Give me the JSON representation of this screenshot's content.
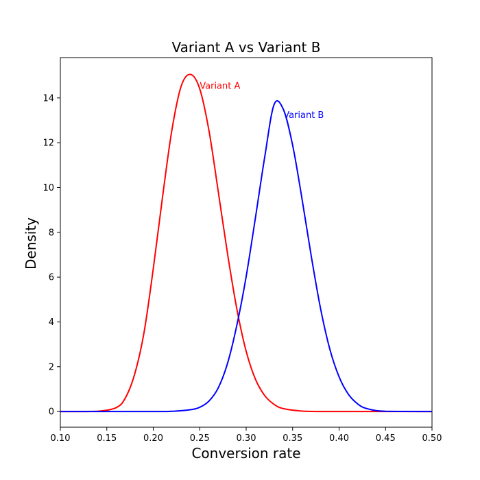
{
  "chart_data": {
    "type": "line",
    "title": "Variant A vs Variant B",
    "xlabel": "Conversion rate",
    "ylabel": "Density",
    "xlim": [
      0.1,
      0.5
    ],
    "ylim": [
      -0.7,
      15.8
    ],
    "xticks": [
      0.1,
      0.15,
      0.2,
      0.25,
      0.3,
      0.35,
      0.4,
      0.45,
      0.5
    ],
    "xtick_labels": [
      "0.10",
      "0.15",
      "0.20",
      "0.25",
      "0.30",
      "0.35",
      "0.40",
      "0.45",
      "0.50"
    ],
    "yticks": [
      0,
      2,
      4,
      6,
      8,
      10,
      12,
      14
    ],
    "ytick_labels": [
      "0",
      "2",
      "4",
      "6",
      "8",
      "10",
      "12",
      "14"
    ],
    "grid": false,
    "series": [
      {
        "name": "Variant A",
        "color": "#ff0000",
        "peak_x": 0.24,
        "peak_y": 15.05,
        "x": [
          0.1,
          0.12,
          0.14,
          0.16,
          0.17,
          0.18,
          0.19,
          0.2,
          0.21,
          0.22,
          0.23,
          0.24,
          0.25,
          0.26,
          0.27,
          0.28,
          0.29,
          0.3,
          0.31,
          0.32,
          0.33,
          0.34,
          0.36,
          0.38,
          0.42,
          0.5
        ],
        "y": [
          0.0,
          0.0,
          0.01,
          0.17,
          0.61,
          1.67,
          3.51,
          6.37,
          9.58,
          12.55,
          14.52,
          15.05,
          14.41,
          12.53,
          9.81,
          7.03,
          4.57,
          2.69,
          1.44,
          0.71,
          0.32,
          0.13,
          0.02,
          0.0,
          0.0,
          0.0
        ]
      },
      {
        "name": "Variant B",
        "color": "#0000ff",
        "peak_x": 0.33,
        "peak_y": 13.7,
        "x": [
          0.1,
          0.2,
          0.22,
          0.24,
          0.25,
          0.26,
          0.27,
          0.28,
          0.29,
          0.3,
          0.31,
          0.32,
          0.33,
          0.34,
          0.35,
          0.36,
          0.37,
          0.38,
          0.39,
          0.4,
          0.41,
          0.42,
          0.43,
          0.45,
          0.5
        ],
        "y": [
          0.0,
          0.0,
          0.01,
          0.08,
          0.19,
          0.47,
          1.06,
          2.16,
          3.86,
          6.03,
          8.66,
          11.37,
          13.7,
          13.49,
          11.89,
          9.52,
          6.95,
          4.61,
          2.79,
          1.55,
          0.77,
          0.34,
          0.13,
          0.01,
          0.0
        ]
      }
    ],
    "annotations": [
      {
        "text": "Variant A",
        "color": "#ff0000",
        "x": 0.25,
        "y": 14.55
      },
      {
        "text": "Variant B",
        "color": "#0000ff",
        "x": 0.34,
        "y": 13.25
      }
    ]
  }
}
